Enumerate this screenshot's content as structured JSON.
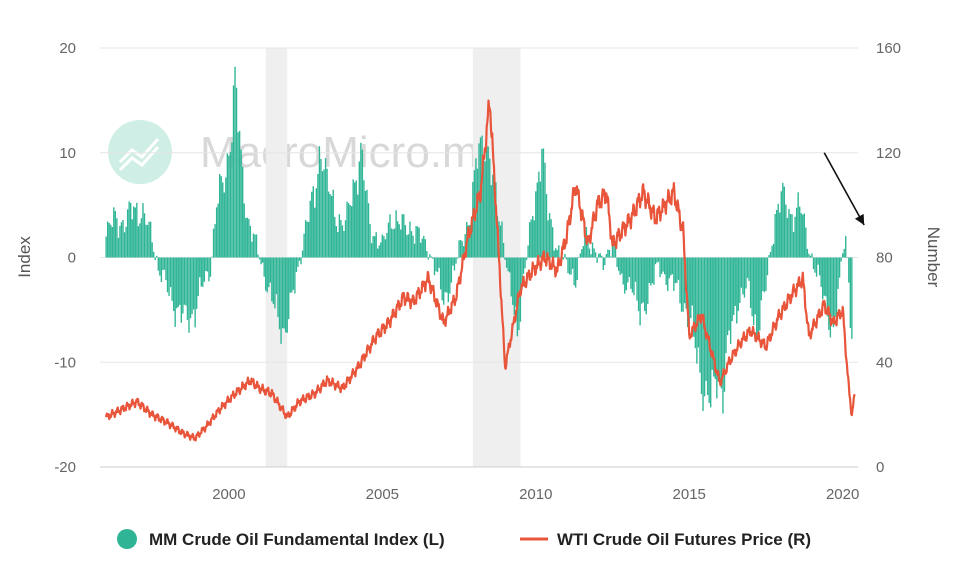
{
  "chart_data": {
    "type": "line",
    "watermark": "MacroMicro.me",
    "left_axis": {
      "label": "Index",
      "range": [
        -20,
        20
      ],
      "ticks": [
        "20",
        "10",
        "0",
        "-10",
        "-20"
      ]
    },
    "right_axis": {
      "label": "Number",
      "range": [
        0,
        160
      ],
      "ticks": [
        "160",
        "120",
        "80",
        "40",
        "0"
      ]
    },
    "x_axis": {
      "range": [
        1995.8,
        2020.5
      ],
      "ticks": [
        "2000",
        "2005",
        "2010",
        "2015",
        "2020"
      ]
    },
    "recessions": [
      [
        2001.2,
        2001.9
      ],
      [
        2007.95,
        2009.5
      ]
    ],
    "legend": {
      "position": "bottom"
    },
    "annotations": [
      {
        "type": "arrow",
        "from": [
          2019.4,
          10.0
        ],
        "to": [
          2020.7,
          3.1
        ]
      }
    ],
    "series": [
      {
        "name": "MM Crude Oil Fundamental Index (L)",
        "kind": "column",
        "axis": "left",
        "color": "#2fb596",
        "points": [
          [
            1996.0,
            2
          ],
          [
            1996.3,
            4
          ],
          [
            1996.6,
            3
          ],
          [
            1996.9,
            5
          ],
          [
            1997.2,
            4
          ],
          [
            1997.5,
            2
          ],
          [
            1997.7,
            -1
          ],
          [
            1998.0,
            -3
          ],
          [
            1998.3,
            -5
          ],
          [
            1998.6,
            -6
          ],
          [
            1998.9,
            -5
          ],
          [
            1999.1,
            -3
          ],
          [
            1999.4,
            -1
          ],
          [
            1999.6,
            5
          ],
          [
            1999.9,
            8
          ],
          [
            2000.1,
            13
          ],
          [
            2000.2,
            17
          ],
          [
            2000.4,
            9
          ],
          [
            2000.6,
            4
          ],
          [
            2000.8,
            2
          ],
          [
            2001.0,
            0
          ],
          [
            2001.2,
            -2
          ],
          [
            2001.4,
            -4
          ],
          [
            2001.6,
            -6
          ],
          [
            2001.8,
            -7
          ],
          [
            2002.0,
            -5
          ],
          [
            2002.2,
            -2
          ],
          [
            2002.5,
            3
          ],
          [
            2002.8,
            6
          ],
          [
            2003.0,
            11
          ],
          [
            2003.2,
            7
          ],
          [
            2003.5,
            4
          ],
          [
            2003.8,
            3
          ],
          [
            2004.0,
            6
          ],
          [
            2004.3,
            10
          ],
          [
            2004.6,
            3
          ],
          [
            2004.8,
            2
          ],
          [
            2005.0,
            1
          ],
          [
            2005.3,
            4
          ],
          [
            2005.6,
            3
          ],
          [
            2005.9,
            3
          ],
          [
            2006.2,
            2
          ],
          [
            2006.5,
            1
          ],
          [
            2006.8,
            -2
          ],
          [
            2007.0,
            -4
          ],
          [
            2007.3,
            -2
          ],
          [
            2007.6,
            2
          ],
          [
            2007.9,
            4
          ],
          [
            2008.1,
            10
          ],
          [
            2008.3,
            12
          ],
          [
            2008.6,
            7
          ],
          [
            2008.9,
            3
          ],
          [
            2009.1,
            -2
          ],
          [
            2009.4,
            -7
          ],
          [
            2009.6,
            -2
          ],
          [
            2009.8,
            2
          ],
          [
            2010.0,
            6
          ],
          [
            2010.2,
            11
          ],
          [
            2010.4,
            4
          ],
          [
            2010.7,
            1
          ],
          [
            2011.0,
            -1
          ],
          [
            2011.3,
            -2
          ],
          [
            2011.6,
            2
          ],
          [
            2011.9,
            1
          ],
          [
            2012.2,
            -1
          ],
          [
            2012.5,
            2
          ],
          [
            2012.8,
            -3
          ],
          [
            2013.1,
            -2
          ],
          [
            2013.4,
            -6
          ],
          [
            2013.7,
            -3
          ],
          [
            2014.0,
            -1
          ],
          [
            2014.3,
            -2
          ],
          [
            2014.6,
            -3
          ],
          [
            2014.9,
            -5
          ],
          [
            2015.1,
            -7
          ],
          [
            2015.3,
            -10
          ],
          [
            2015.5,
            -13
          ],
          [
            2015.7,
            -14
          ],
          [
            2015.9,
            -11
          ],
          [
            2016.1,
            -13
          ],
          [
            2016.3,
            -8
          ],
          [
            2016.6,
            -4
          ],
          [
            2016.9,
            -3
          ],
          [
            2017.2,
            -7
          ],
          [
            2017.5,
            -3
          ],
          [
            2017.8,
            4
          ],
          [
            2018.0,
            6
          ],
          [
            2018.3,
            4
          ],
          [
            2018.6,
            5
          ],
          [
            2018.9,
            1
          ],
          [
            2019.1,
            -1
          ],
          [
            2019.4,
            -4
          ],
          [
            2019.7,
            -7
          ],
          [
            2019.9,
            -3
          ],
          [
            2020.0,
            1
          ],
          [
            2020.1,
            2
          ],
          [
            2020.2,
            -2
          ],
          [
            2020.3,
            -8
          ]
        ]
      },
      {
        "name": "WTI Crude Oil Futures Price (R)",
        "kind": "line",
        "axis": "right",
        "color": "#e8553a",
        "points": [
          [
            1996.0,
            19
          ],
          [
            1996.5,
            22
          ],
          [
            1997.0,
            25
          ],
          [
            1997.5,
            20
          ],
          [
            1998.0,
            17
          ],
          [
            1998.5,
            13
          ],
          [
            1998.9,
            11
          ],
          [
            1999.3,
            16
          ],
          [
            1999.7,
            22
          ],
          [
            2000.2,
            28
          ],
          [
            2000.7,
            33
          ],
          [
            2001.0,
            30
          ],
          [
            2001.4,
            28
          ],
          [
            2001.9,
            19
          ],
          [
            2002.3,
            25
          ],
          [
            2002.8,
            28
          ],
          [
            2003.2,
            33
          ],
          [
            2003.7,
            30
          ],
          [
            2004.2,
            38
          ],
          [
            2004.8,
            50
          ],
          [
            2005.2,
            55
          ],
          [
            2005.7,
            65
          ],
          [
            2006.0,
            63
          ],
          [
            2006.5,
            72
          ],
          [
            2007.0,
            55
          ],
          [
            2007.4,
            65
          ],
          [
            2007.8,
            88
          ],
          [
            2008.2,
            105
          ],
          [
            2008.5,
            140
          ],
          [
            2008.8,
            80
          ],
          [
            2009.0,
            38
          ],
          [
            2009.2,
            50
          ],
          [
            2009.5,
            68
          ],
          [
            2009.9,
            75
          ],
          [
            2010.3,
            80
          ],
          [
            2010.7,
            75
          ],
          [
            2011.0,
            88
          ],
          [
            2011.3,
            108
          ],
          [
            2011.7,
            85
          ],
          [
            2012.0,
            100
          ],
          [
            2012.3,
            105
          ],
          [
            2012.5,
            85
          ],
          [
            2012.8,
            90
          ],
          [
            2013.1,
            95
          ],
          [
            2013.5,
            105
          ],
          [
            2013.9,
            95
          ],
          [
            2014.2,
            100
          ],
          [
            2014.5,
            105
          ],
          [
            2014.8,
            90
          ],
          [
            2015.0,
            50
          ],
          [
            2015.4,
            58
          ],
          [
            2015.7,
            45
          ],
          [
            2016.0,
            32
          ],
          [
            2016.3,
            40
          ],
          [
            2016.7,
            48
          ],
          [
            2017.0,
            52
          ],
          [
            2017.5,
            46
          ],
          [
            2017.9,
            57
          ],
          [
            2018.3,
            65
          ],
          [
            2018.7,
            72
          ],
          [
            2018.9,
            50
          ],
          [
            2019.1,
            55
          ],
          [
            2019.4,
            62
          ],
          [
            2019.7,
            55
          ],
          [
            2020.0,
            60
          ],
          [
            2020.2,
            30
          ],
          [
            2020.3,
            20
          ],
          [
            2020.4,
            28
          ]
        ]
      }
    ]
  }
}
